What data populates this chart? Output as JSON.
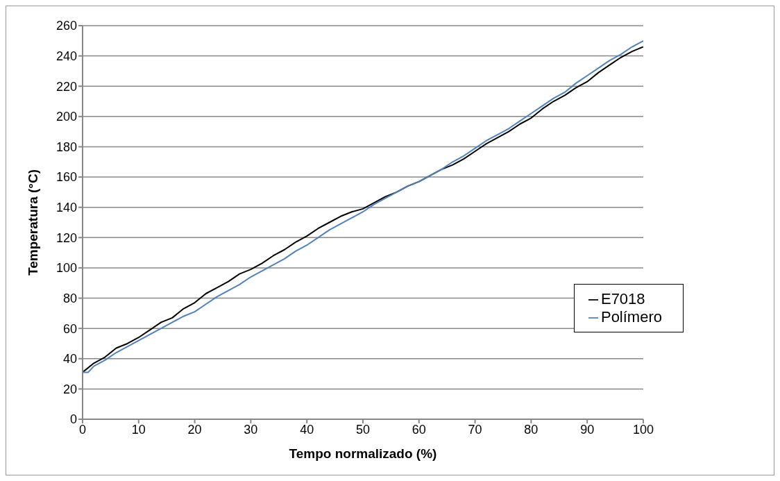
{
  "chart_data": {
    "type": "line",
    "xlabel": "Tempo normalizado  (%)",
    "ylabel": "Temperatura (°C)",
    "xlim": [
      0,
      100
    ],
    "xticks": [
      0,
      10,
      20,
      30,
      40,
      50,
      60,
      70,
      80,
      90,
      100
    ],
    "ylim": [
      0,
      260
    ],
    "yticks": [
      0,
      20,
      40,
      60,
      80,
      100,
      120,
      140,
      160,
      180,
      200,
      220,
      240,
      260
    ],
    "grid": "y",
    "legend": "right",
    "marker": "none",
    "line_style": "solid",
    "series": [
      {
        "name": "E7018",
        "color": "#000000",
        "x": [
          0,
          2,
          4,
          6,
          8,
          10,
          12,
          14,
          16,
          18,
          20,
          22,
          24,
          26,
          28,
          30,
          32,
          34,
          36,
          38,
          40,
          42,
          44,
          46,
          48,
          50,
          52,
          54,
          56,
          58,
          60,
          62,
          64,
          66,
          68,
          70,
          72,
          74,
          76,
          78,
          80,
          82,
          84,
          86,
          88,
          90,
          92,
          94,
          96,
          98,
          100
        ],
        "values": [
          31,
          37,
          41,
          47,
          50,
          54,
          59,
          64,
          67,
          73,
          77,
          83,
          87,
          91,
          96,
          99,
          103,
          108,
          112,
          117,
          121,
          126,
          130,
          134,
          137,
          139,
          143,
          147,
          150,
          154,
          157,
          161,
          165,
          168,
          172,
          177,
          182,
          186,
          190,
          195,
          199,
          205,
          210,
          214,
          219,
          223,
          229,
          234,
          239,
          243,
          246
        ]
      },
      {
        "name": "Polímero",
        "color": "#4f81bd",
        "x": [
          0,
          1,
          2,
          4,
          6,
          8,
          10,
          12,
          14,
          16,
          18,
          20,
          22,
          24,
          26,
          28,
          30,
          32,
          34,
          36,
          38,
          40,
          42,
          44,
          46,
          48,
          50,
          52,
          54,
          56,
          58,
          60,
          62,
          64,
          66,
          68,
          70,
          72,
          74,
          76,
          78,
          80,
          82,
          84,
          86,
          88,
          90,
          92,
          94,
          96,
          98,
          100
        ],
        "values": [
          31,
          31,
          35,
          39,
          44,
          48,
          52,
          56,
          60,
          64,
          68,
          71,
          76,
          81,
          85,
          89,
          94,
          98,
          102,
          106,
          111,
          115,
          120,
          125,
          129,
          133,
          137,
          142,
          146,
          150,
          154,
          157,
          161,
          165,
          170,
          174,
          179,
          184,
          188,
          192,
          197,
          202,
          207,
          212,
          216,
          222,
          227,
          232,
          237,
          241,
          246,
          250
        ]
      }
    ]
  }
}
